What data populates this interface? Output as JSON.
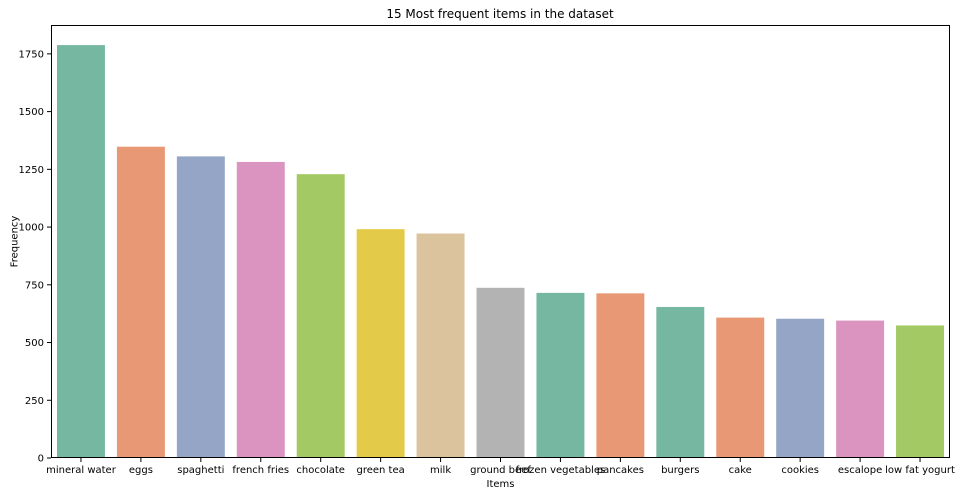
{
  "chart_data": {
    "type": "bar",
    "title": "15 Most frequent items in the dataset",
    "xlabel": "Items",
    "ylabel": "Frequency",
    "ylim": [
      0,
      1875
    ],
    "yticks": [
      0,
      250,
      500,
      750,
      1000,
      1250,
      1500,
      1750
    ],
    "grid": false,
    "categories": [
      "mineral water",
      "eggs",
      "spaghetti",
      "french fries",
      "chocolate",
      "green tea",
      "milk",
      "ground beef",
      "frozen vegetables",
      "pancakes",
      "burgers",
      "cake",
      "cookies",
      "escalope",
      "low fat yogurt"
    ],
    "values": [
      1788,
      1348,
      1306,
      1282,
      1229,
      991,
      972,
      737,
      715,
      713,
      654,
      608,
      603,
      595,
      574
    ],
    "colors": [
      "#76b7a2",
      "#e99875",
      "#95a5c5",
      "#db94bf",
      "#a2c963",
      "#e4ca49",
      "#dbc39e",
      "#b3b3b3",
      "#76b7a2",
      "#e99875",
      "#76b7a2",
      "#e99875",
      "#95a5c5",
      "#db94bf",
      "#a2c963"
    ]
  }
}
